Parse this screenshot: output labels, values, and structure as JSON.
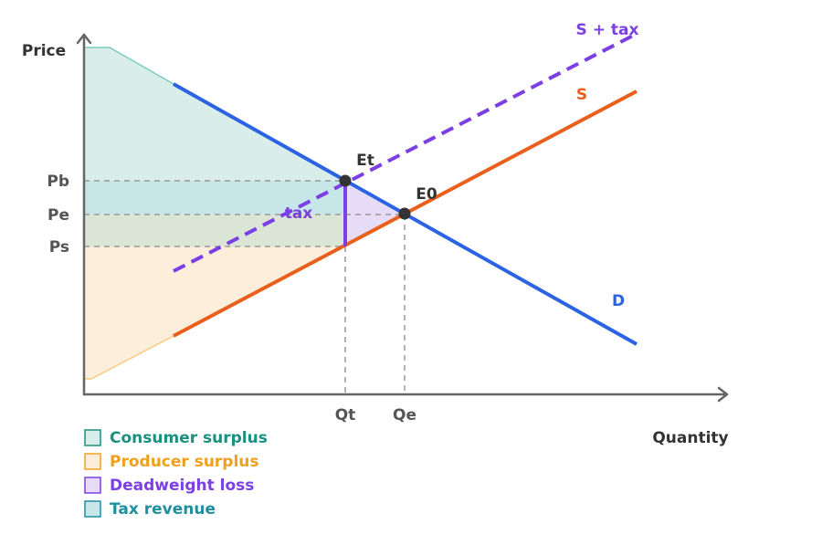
{
  "axes": {
    "y_label": "Price",
    "x_label": "Quantity"
  },
  "price_levels": [
    "Pb",
    "Pe",
    "Ps"
  ],
  "quantity_levels": [
    "Qt",
    "Qe"
  ],
  "curves": {
    "supply_tax": "S + tax",
    "supply": "S",
    "demand": "D"
  },
  "points": {
    "tax_equilibrium": "Et",
    "equilibrium": "E0"
  },
  "tax_label": "tax",
  "legend": [
    "Consumer surplus",
    "Producer surplus",
    "Deadweight loss",
    "Tax revenue"
  ]
}
